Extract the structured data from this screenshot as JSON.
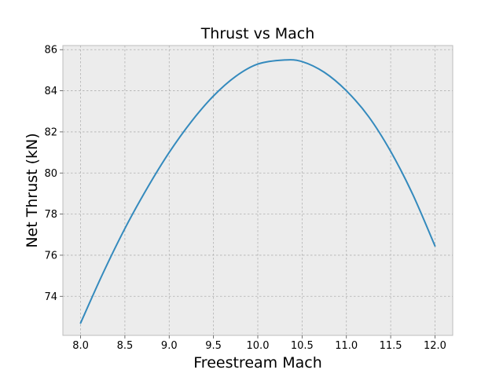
{
  "chart_data": {
    "type": "line",
    "title": "Thrust vs Mach",
    "xlabel": "Freestream Mach",
    "ylabel": "Net Thrust (kN)",
    "xlim": [
      7.8,
      12.2
    ],
    "ylim": [
      72.1,
      86.2
    ],
    "xticks": [
      8.0,
      8.5,
      9.0,
      9.5,
      10.0,
      10.5,
      11.0,
      11.5,
      12.0
    ],
    "xtick_labels": [
      "8.0",
      "8.5",
      "9.0",
      "9.5",
      "10.0",
      "10.5",
      "11.0",
      "11.5",
      "12.0"
    ],
    "yticks": [
      74,
      76,
      78,
      80,
      82,
      84,
      86
    ],
    "ytick_labels": [
      "74",
      "76",
      "78",
      "80",
      "82",
      "84",
      "86"
    ],
    "grid": true,
    "colors": {
      "line": "#348abd",
      "background": "#ececec",
      "grid": "#b0b0b0"
    },
    "series": [
      {
        "x": [
          8.0,
          8.25,
          8.5,
          8.75,
          9.0,
          9.25,
          9.5,
          9.75,
          10.0,
          10.3,
          10.5,
          10.75,
          11.0,
          11.25,
          11.5,
          11.75,
          12.0
        ],
        "y": [
          72.7,
          75.1,
          77.3,
          79.25,
          81.0,
          82.5,
          83.75,
          84.7,
          85.3,
          85.5,
          85.42,
          84.9,
          84.0,
          82.75,
          81.05,
          78.95,
          76.45
        ]
      }
    ]
  }
}
